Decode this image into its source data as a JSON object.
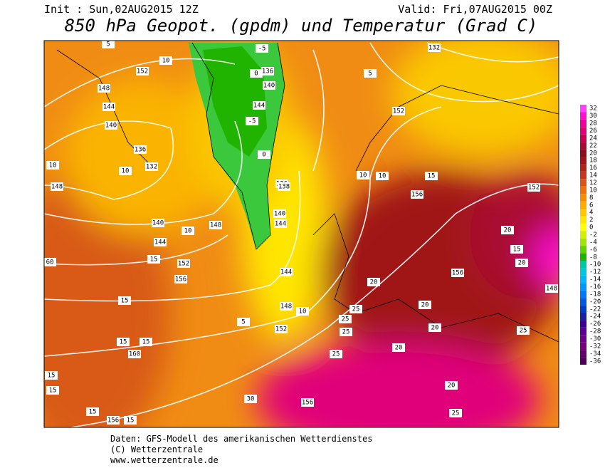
{
  "header": {
    "init": "Init : Sun,02AUG2015 12Z",
    "valid": "Valid: Fri,07AUG2015 00Z",
    "title": "850 hPa Geopot. (gpdm) und Temperatur (Grad C)"
  },
  "colorbar": {
    "ticks": [
      32,
      30,
      28,
      26,
      24,
      22,
      20,
      18,
      16,
      14,
      12,
      10,
      8,
      6,
      4,
      2,
      0,
      -2,
      -4,
      -6,
      -8,
      -10,
      -12,
      -14,
      -16,
      -18,
      -20,
      -22,
      -24,
      -26,
      -28,
      -30,
      -32,
      -34,
      -36
    ],
    "colors": [
      "#ff40ff",
      "#ff10d0",
      "#f0009a",
      "#e00078",
      "#c80050",
      "#aa0a32",
      "#8c0f1e",
      "#a0141a",
      "#b4231a",
      "#c8371a",
      "#dc5514",
      "#f0700a",
      "#fa8c00",
      "#ffaa00",
      "#ffc800",
      "#ffe600",
      "#ffff00",
      "#d2f000",
      "#a0e600",
      "#60d200",
      "#20b400",
      "#00c8a0",
      "#00c8dc",
      "#00b4ff",
      "#0096ff",
      "#0078ff",
      "#005ae6",
      "#003cc8",
      "#1e1ea0",
      "#3c0096",
      "#5a0096",
      "#6e008c",
      "#78007d",
      "#64006e",
      "#50005a"
    ]
  },
  "map": {
    "labels": [
      "132",
      "-5",
      "5",
      "152",
      "10",
      "148",
      "144",
      "140",
      "136",
      "132",
      "10",
      "10",
      "148",
      "140",
      "144",
      "15",
      "60",
      "152",
      "156",
      "15",
      "15",
      "15",
      "160",
      "15",
      "15",
      "15",
      "156",
      "15",
      "10",
      "148",
      "144",
      "140",
      "136",
      "138",
      "-5",
      "0",
      "5",
      "152",
      "136",
      "140",
      "144",
      "10",
      "10",
      "156",
      "15",
      "20",
      "20",
      "20",
      "25",
      "25",
      "25",
      "20",
      "20",
      "25",
      "152",
      "148",
      "15",
      "156",
      "20",
      "30",
      "25",
      "152",
      "10",
      "5",
      "0",
      "144",
      "148",
      "156",
      "20",
      "25"
    ]
  },
  "footer": {
    "line1": "Daten: GFS-Modell des amerikanischen Wetterdienstes",
    "line2": "(C) Wetterzentrale",
    "line3": "www.wetterzentrale.de"
  }
}
